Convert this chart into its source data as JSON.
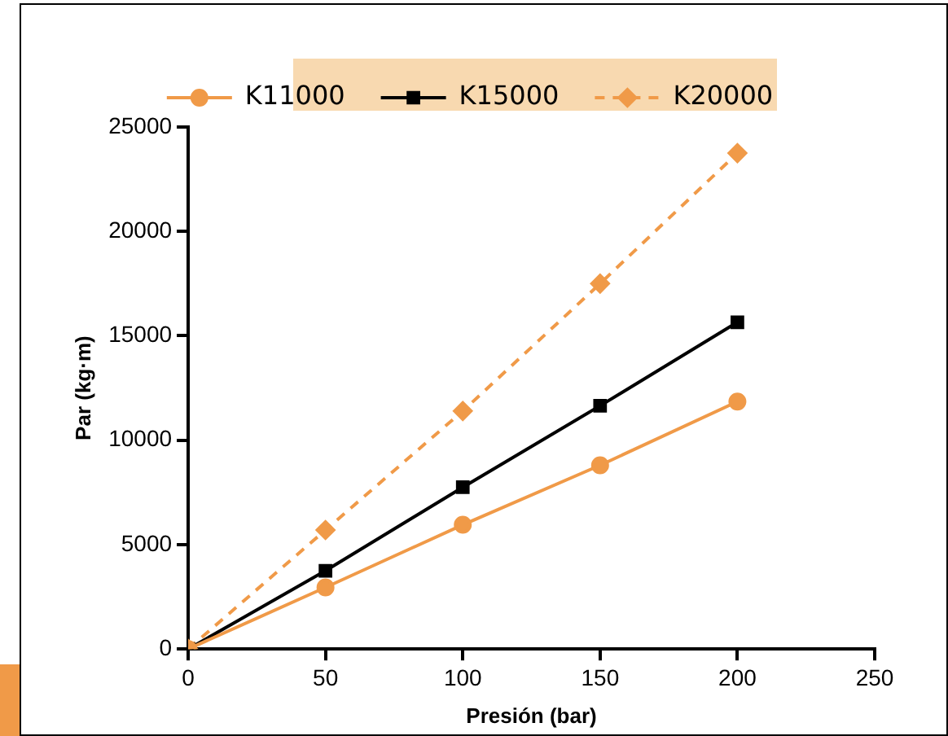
{
  "chart_data": {
    "type": "line",
    "xlabel": "Presión (bar)",
    "ylabel": "Par (kg·m)",
    "x": [
      0,
      50,
      100,
      150,
      200
    ],
    "series": [
      {
        "name": "K11000",
        "color": "#f09a48",
        "values": [
          0,
          2950,
          5950,
          8800,
          11850
        ],
        "marker": "circle",
        "line_style": "solid"
      },
      {
        "name": "K15000",
        "color": "#000000",
        "values": [
          0,
          3750,
          7750,
          11650,
          15650
        ],
        "marker": "square",
        "line_style": "solid"
      },
      {
        "name": "K20000",
        "color": "#f09a48",
        "values": [
          0,
          5700,
          11400,
          17500,
          23750
        ],
        "marker": "diamond",
        "line_style": "dashed"
      }
    ],
    "xlim": [
      0,
      250
    ],
    "xticks": [
      0,
      50,
      100,
      150,
      200,
      250
    ],
    "ylim": [
      0,
      25000
    ],
    "yticks": [
      0,
      5000,
      10000,
      15000,
      20000,
      25000
    ],
    "grid": false,
    "legend": "top"
  }
}
